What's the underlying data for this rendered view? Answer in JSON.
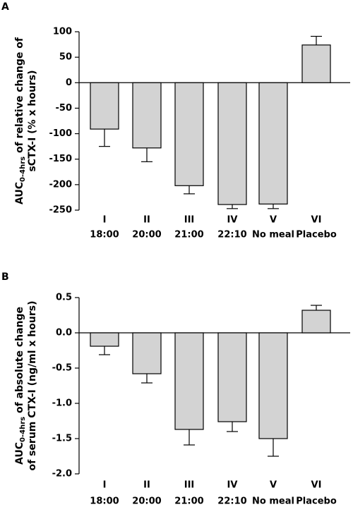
{
  "chart_data": [
    {
      "type": "bar",
      "panel": "A",
      "y_label": {
        "main": "AUC",
        "subscript": "0-4hrs",
        "rest": " of relative change of",
        "line2": "sCTX-I (% x hours)"
      },
      "categories": [
        [
          "I",
          "18:00"
        ],
        [
          "II",
          "20:00"
        ],
        [
          "III",
          "21:00"
        ],
        [
          "IV",
          "22:10"
        ],
        [
          "V",
          "No meal"
        ],
        [
          "VI",
          "Placebo"
        ]
      ],
      "values": [
        -91,
        -128,
        -202,
        -239,
        -238,
        74
      ],
      "errors": [
        34,
        27,
        16,
        8,
        9,
        17
      ],
      "color": "#d3d3d3",
      "ylim": [
        -250,
        100
      ],
      "yticks": [
        -250,
        -200,
        -150,
        -100,
        -50,
        0,
        50,
        100
      ]
    },
    {
      "type": "bar",
      "panel": "B",
      "y_label": {
        "main": "AUC",
        "subscript": "0-4hrs",
        "rest": " of absolute change",
        "line2": "of serum CTX-I (ng/ml x hours)"
      },
      "categories": [
        [
          "I",
          "18:00"
        ],
        [
          "II",
          "20:00"
        ],
        [
          "III",
          "21:00"
        ],
        [
          "IV",
          "22:10"
        ],
        [
          "V",
          "No meal"
        ],
        [
          "VI",
          "Placebo"
        ]
      ],
      "values": [
        -0.19,
        -0.58,
        -1.37,
        -1.26,
        -1.5,
        0.32
      ],
      "errors": [
        0.12,
        0.13,
        0.22,
        0.14,
        0.25,
        0.07
      ],
      "color": "#d3d3d3",
      "ylim": [
        -2.0,
        0.5
      ],
      "yticks": [
        {
          "value": -2.0,
          "label": "-2.0"
        },
        -1.5,
        {
          "value": -1.0,
          "label": "-1.0"
        },
        -0.5,
        {
          "value": 0,
          "label": "0.0"
        },
        0.5
      ]
    }
  ]
}
